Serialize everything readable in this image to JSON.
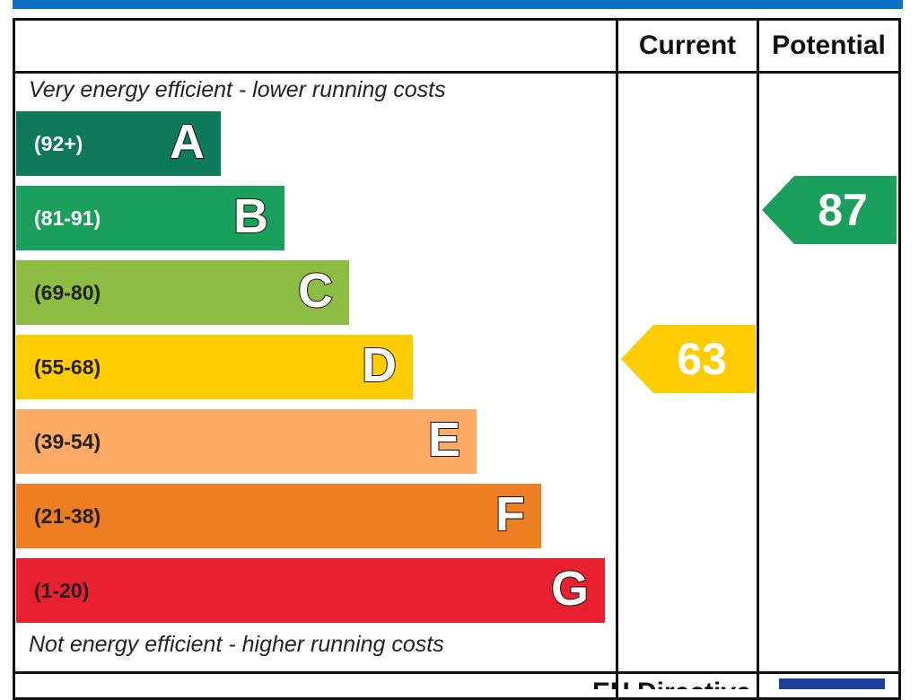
{
  "chart_data": {
    "type": "bar",
    "title": "",
    "columns": [
      "Current",
      "Potential"
    ],
    "top_note": "Very energy efficient - lower running costs",
    "bottom_note": "Not energy efficient - higher running costs",
    "bands": [
      {
        "letter": "A",
        "range": "(92+)",
        "color": "#0f7a5a",
        "text_color": "#ffffff"
      },
      {
        "letter": "B",
        "range": "(81-91)",
        "color": "#1aa05a",
        "text_color": "#ffffff"
      },
      {
        "letter": "C",
        "range": "(69-80)",
        "color": "#8cbc42",
        "text_color": "#222222"
      },
      {
        "letter": "D",
        "range": "(55-68)",
        "color": "#ffcc00",
        "text_color": "#222222"
      },
      {
        "letter": "E",
        "range": "(39-54)",
        "color": "#fcaa65",
        "text_color": "#222222"
      },
      {
        "letter": "F",
        "range": "(21-38)",
        "color": "#ef7d22",
        "text_color": "#222222"
      },
      {
        "letter": "G",
        "range": "(1-20)",
        "color": "#e9202f",
        "text_color": "#222222"
      }
    ],
    "current": {
      "value": "63",
      "band": "D",
      "color": "#ffcc00"
    },
    "potential": {
      "value": "87",
      "band": "B",
      "color": "#1aa05a"
    }
  },
  "footer": {
    "text": "EU Directive"
  }
}
